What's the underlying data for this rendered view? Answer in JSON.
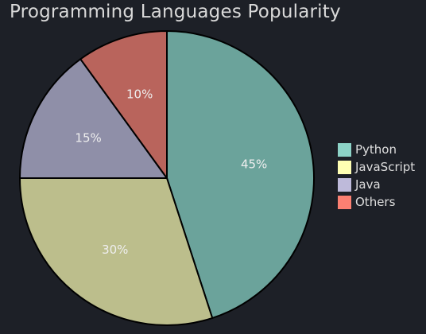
{
  "chart_data": {
    "type": "pie",
    "title": "Programming Languages Popularity",
    "categories": [
      "Python",
      "JavaScript",
      "Java",
      "Others"
    ],
    "values": [
      45,
      30,
      15,
      10
    ],
    "labels": [
      "45%",
      "30%",
      "15%",
      "10%"
    ],
    "colors": [
      "#6ba39b",
      "#bcbe8c",
      "#8f8fa8",
      "#b9645c"
    ],
    "legend_colors": [
      "#8dd3c7",
      "#ffffb3",
      "#bebada",
      "#fb8072"
    ],
    "start_angle_deg": 90,
    "direction": "clockwise",
    "legend_position": "right"
  }
}
